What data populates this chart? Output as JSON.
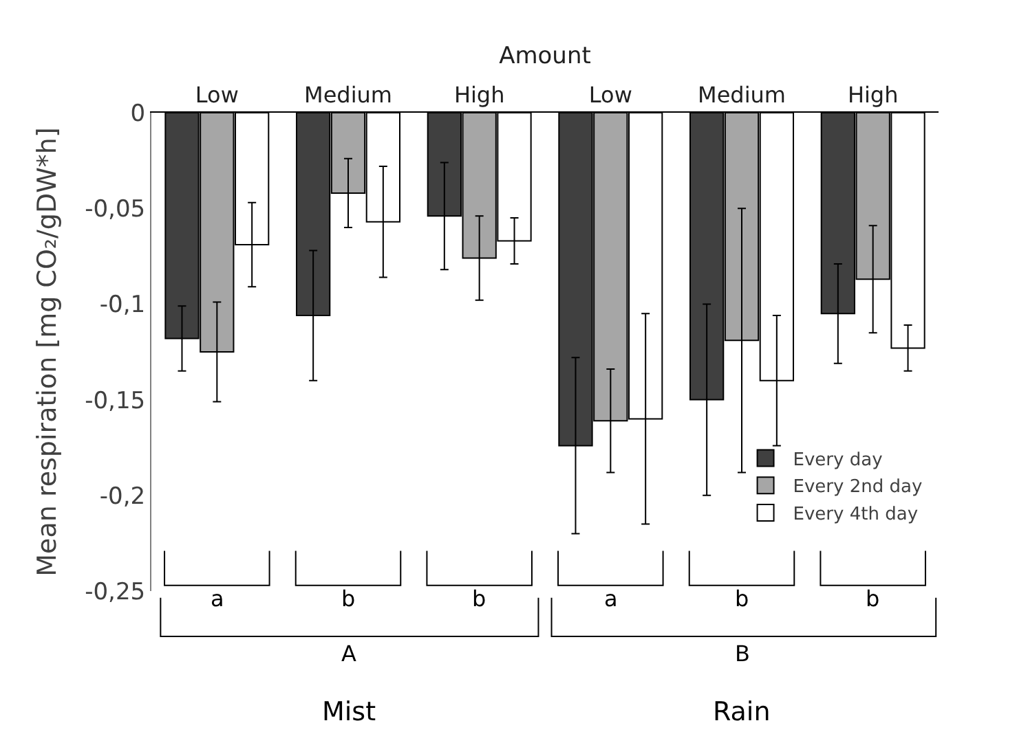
{
  "chart_data": {
    "type": "bar",
    "xlabel": "Amount",
    "ylabel": "Mean respiration [mg CO₂/gDW*h]",
    "categories": [
      "Low",
      "Medium",
      "High",
      "Low",
      "Medium",
      "High"
    ],
    "series": [
      {
        "name": "Every day",
        "color": "#404040",
        "values": [
          -0.118,
          -0.106,
          -0.054,
          -0.174,
          -0.15,
          -0.105
        ],
        "errors": [
          0.017,
          0.034,
          0.028,
          0.046,
          0.05,
          0.026
        ]
      },
      {
        "name": "Every 2nd day",
        "color": "#a6a6a6",
        "values": [
          -0.125,
          -0.042,
          -0.076,
          -0.161,
          -0.119,
          -0.087
        ],
        "errors": [
          0.026,
          0.018,
          0.022,
          0.027,
          0.069,
          0.028
        ]
      },
      {
        "name": "Every 4th day",
        "color": "#ffffff",
        "values": [
          -0.069,
          -0.057,
          -0.067,
          -0.16,
          -0.14,
          -0.123
        ],
        "errors": [
          0.022,
          0.029,
          0.012,
          0.055,
          0.034,
          0.012
        ]
      }
    ],
    "ylim": [
      -0.25,
      0
    ],
    "yticks": [
      {
        "value": 0,
        "label": "0"
      },
      {
        "value": -0.05,
        "label": "-0,05"
      },
      {
        "value": -0.1,
        "label": "-0,1"
      },
      {
        "value": -0.15,
        "label": "-0,15"
      },
      {
        "value": -0.2,
        "label": "-0,2"
      },
      {
        "value": -0.25,
        "label": "-0,25"
      }
    ],
    "annotations": [
      "a",
      "b",
      "b",
      "a",
      "b",
      "b",
      "A",
      "B",
      "Mist",
      "Rain"
    ],
    "legend": "bottom right"
  }
}
